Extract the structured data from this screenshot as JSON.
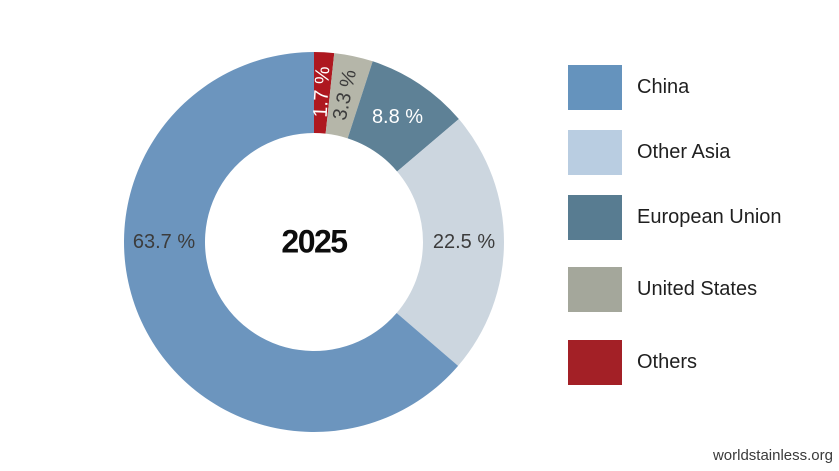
{
  "page": {
    "background_color": "#ffffff"
  },
  "chart_data": {
    "type": "pie",
    "variant": "donut",
    "center_label": "2025",
    "unit": "%",
    "categories": [
      "China",
      "Other Asia",
      "European Union",
      "United States",
      "Others"
    ],
    "values": [
      63.7,
      22.5,
      8.8,
      3.3,
      1.7
    ],
    "slices": [
      {
        "label": "China",
        "value": 63.7,
        "display": "63.7 %",
        "slice_color": "#6C95BE",
        "legend_color": "#6593BD",
        "label_color": "#3C3C3C",
        "label_rotation": "horizontal",
        "label_angle_deg": 270
      },
      {
        "label": "Other Asia",
        "value": 22.5,
        "display": "22.5 %",
        "slice_color": "#CCD6DF",
        "legend_color": "#B9CDE1",
        "label_color": "#3C3C3C",
        "label_rotation": "horizontal"
      },
      {
        "label": "European Union",
        "value": 8.8,
        "display": "8.8 %",
        "slice_color": "#5E8196",
        "legend_color": "#587C91",
        "label_color": "#FFFFFF",
        "label_rotation": "horizontal"
      },
      {
        "label": "United States",
        "value": 3.3,
        "display": "3.3 %",
        "slice_color": "#B5B6A9",
        "legend_color": "#A4A79B",
        "label_color": "#3C3C3C",
        "label_rotation": "radial"
      },
      {
        "label": "Others",
        "value": 1.7,
        "display": "1.7 %",
        "slice_color": "#AE1820",
        "legend_color": "#A32026",
        "label_color": "#FFFFFF",
        "label_rotation": "radial"
      }
    ],
    "draw_order": "counterclockwise_from_top_in_legend_order",
    "legend_position": "right",
    "grid": false
  },
  "footer": {
    "text": "worldstainless.org"
  }
}
